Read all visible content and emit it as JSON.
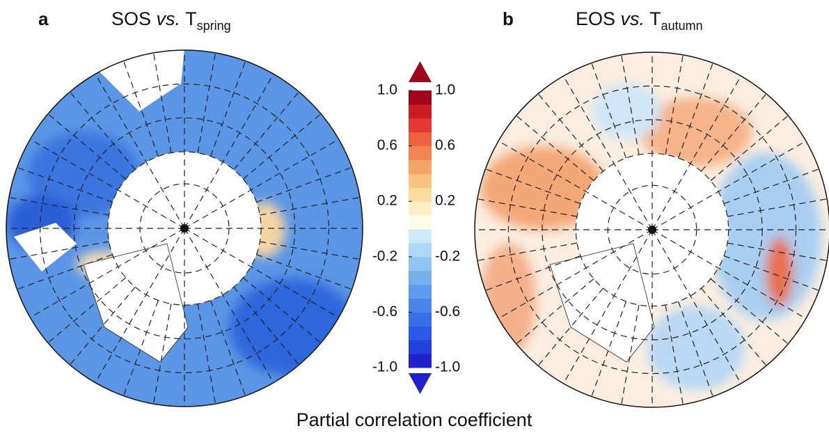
{
  "panels": [
    {
      "label": "a",
      "title": {
        "text": "SOS",
        "italic": "vs.",
        "var": "T",
        "subscript": "spring"
      }
    },
    {
      "label": "b",
      "title": {
        "text": "EOS",
        "italic": "vs.",
        "var": "T",
        "subscript": "autumn"
      }
    }
  ],
  "colorbar": {
    "title": "Partial correlation coefficient",
    "lim": [
      -1,
      1
    ],
    "ticks": [
      {
        "value": 1,
        "label": "1.0"
      },
      0.6,
      0.2,
      -0.2,
      -0.6,
      {
        "value": -1,
        "label": "-1.0"
      }
    ],
    "colors": [
      "#1f22c8",
      "#2140dc",
      "#2a5ae6",
      "#3570e8",
      "#4a86ea",
      "#5f9bec",
      "#78b0ee",
      "#92c4f2",
      "#aed8f6",
      "#cdeaf9",
      "#fefce8",
      "#fdf0c8",
      "#fbdca0",
      "#f8c380",
      "#f5a466",
      "#f28454",
      "#ee6242",
      "#e43a33",
      "#cc1c26",
      "#a0061a"
    ]
  }
}
